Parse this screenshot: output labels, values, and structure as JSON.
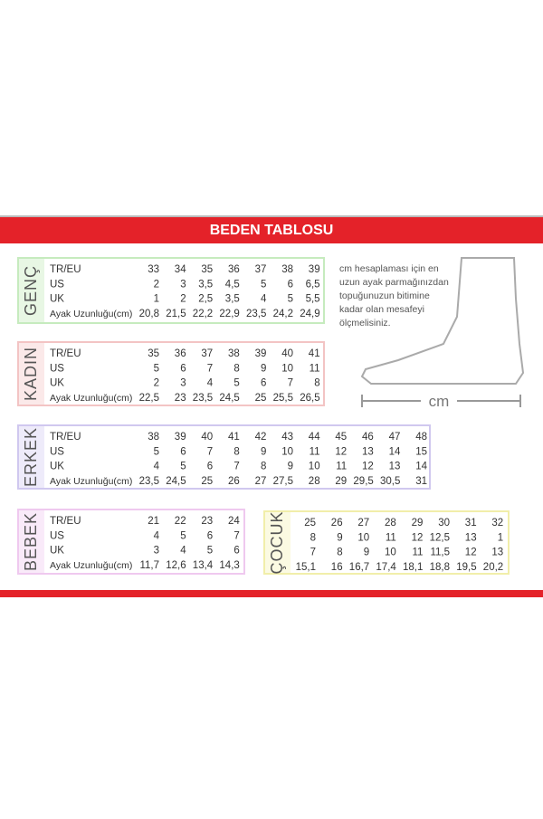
{
  "header": {
    "title": "BEDEN TABLOSU"
  },
  "note": {
    "lines": [
      "cm hesaplaması için en",
      "uzun ayak parmağınızdan",
      "topuğunuzun bitimine",
      "kadar olan mesafeyi",
      "ölçmelisiniz."
    ],
    "unit": "cm"
  },
  "tables": [
    {
      "label": "GENÇ",
      "rows": [
        {
          "label": "TR/EU",
          "cells": [
            "33",
            "34",
            "35",
            "36",
            "37",
            "38",
            "39"
          ]
        },
        {
          "label": "US",
          "cells": [
            "2",
            "3",
            "3,5",
            "4,5",
            "5",
            "6",
            "6,5"
          ]
        },
        {
          "label": "UK",
          "cells": [
            "1",
            "2",
            "2,5",
            "3,5",
            "4",
            "5",
            "5,5"
          ]
        },
        {
          "label": "Ayak Uzunluğu(cm)",
          "cells": [
            "20,8",
            "21,5",
            "22,2",
            "22,9",
            "23,5",
            "24,2",
            "24,9"
          ]
        }
      ]
    },
    {
      "label": "KADIN",
      "rows": [
        {
          "label": "TR/EU",
          "cells": [
            "35",
            "36",
            "37",
            "38",
            "39",
            "40",
            "41"
          ]
        },
        {
          "label": "US",
          "cells": [
            "5",
            "6",
            "7",
            "8",
            "9",
            "10",
            "11"
          ]
        },
        {
          "label": "UK",
          "cells": [
            "2",
            "3",
            "4",
            "5",
            "6",
            "7",
            "8"
          ]
        },
        {
          "label": "Ayak Uzunluğu(cm)",
          "cells": [
            "22,5",
            "23",
            "23,5",
            "24,5",
            "25",
            "25,5",
            "26,5"
          ]
        }
      ]
    },
    {
      "label": "ERKEK",
      "rows": [
        {
          "label": "TR/EU",
          "cells": [
            "38",
            "39",
            "40",
            "41",
            "42",
            "43",
            "44",
            "45",
            "46",
            "47",
            "48"
          ]
        },
        {
          "label": "US",
          "cells": [
            "5",
            "6",
            "7",
            "8",
            "9",
            "10",
            "11",
            "12",
            "13",
            "14",
            "15"
          ]
        },
        {
          "label": "UK",
          "cells": [
            "4",
            "5",
            "6",
            "7",
            "8",
            "9",
            "10",
            "11",
            "12",
            "13",
            "14"
          ]
        },
        {
          "label": "Ayak Uzunluğu(cm)",
          "cells": [
            "23,5",
            "24,5",
            "25",
            "26",
            "27",
            "27,5",
            "28",
            "29",
            "29,5",
            "30,5",
            "31"
          ]
        }
      ]
    },
    {
      "label": "BEBEK",
      "rows": [
        {
          "label": "TR/EU",
          "cells": [
            "21",
            "22",
            "23",
            "24"
          ]
        },
        {
          "label": "US",
          "cells": [
            "4",
            "5",
            "6",
            "7"
          ]
        },
        {
          "label": "UK",
          "cells": [
            "3",
            "4",
            "5",
            "6"
          ]
        },
        {
          "label": "Ayak Uzunluğu(cm)",
          "cells": [
            "11,7",
            "12,6",
            "13,4",
            "14,3"
          ]
        }
      ]
    },
    {
      "label": "ÇOCUK",
      "rows": [
        {
          "cells": [
            "25",
            "26",
            "27",
            "28",
            "29",
            "30",
            "31",
            "32"
          ]
        },
        {
          "cells": [
            "8",
            "9",
            "10",
            "11",
            "12",
            "12,5",
            "13",
            "1"
          ]
        },
        {
          "cells": [
            "7",
            "8",
            "9",
            "10",
            "11",
            "11,5",
            "12",
            "13"
          ]
        },
        {
          "cells": [
            "15,1",
            "16",
            "16,7",
            "17,4",
            "18,1",
            "18,8",
            "19,5",
            "20,2"
          ]
        }
      ]
    }
  ]
}
